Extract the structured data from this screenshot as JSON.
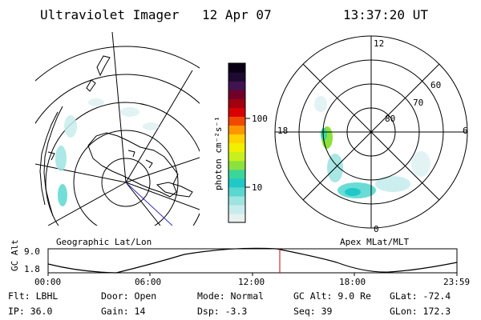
{
  "header": {
    "title": "Ultraviolet Imager",
    "date": "12 Apr 07",
    "time": "13:37:20 UT"
  },
  "colorbar": {
    "unit_label": "photon cm⁻²s⁻¹",
    "ticks": [
      "100",
      "10"
    ],
    "colors": [
      "#e8f0f0",
      "#c8ecec",
      "#9ee4e0",
      "#5ad8d0",
      "#20c8c8",
      "#3cd69a",
      "#8ce23c",
      "#c8f01e",
      "#f0f000",
      "#ffd200",
      "#ff9600",
      "#f04a00",
      "#d80000",
      "#a00010",
      "#70002a",
      "#401450",
      "#1e0a30",
      "#0a0014"
    ]
  },
  "geo_panel": {
    "label": "Geographic Lat/Lon"
  },
  "mag_panel": {
    "label": "Apex MLat/MLT",
    "mlt_labels": {
      "top": "12",
      "left": "18",
      "right": "6",
      "bottom": "0"
    },
    "lat_labels": [
      "60",
      "70",
      "80"
    ]
  },
  "altitude_plot": {
    "ylabel": "GC Alt",
    "yticks": [
      "9.0",
      "1.8"
    ],
    "xticks": [
      "00:00",
      "06:00",
      "12:00",
      "18:00",
      "23:59"
    ],
    "current_marker_color": "#d00000"
  },
  "status": {
    "flt": "Flt: LBHL",
    "ip": "IP: 36.0",
    "door": "Door: Open",
    "gain": "Gain: 14",
    "mode": "Mode: Normal",
    "dsp": "Dsp:    -3.3",
    "gc_alt": "GC Alt: 9.0 Re",
    "seq": "Seq: 39",
    "glat": "GLat: -72.4",
    "glon": "GLon: 172.3"
  }
}
